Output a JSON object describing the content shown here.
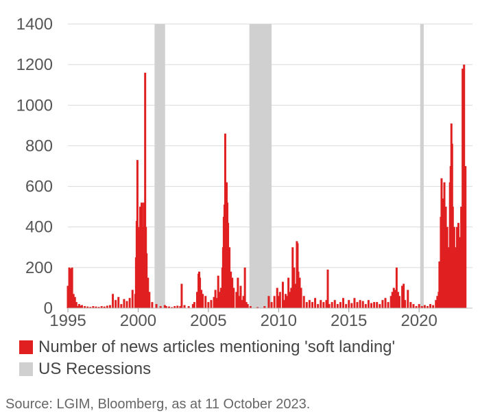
{
  "chart_data": {
    "type": "bar",
    "title": "",
    "xlabel": "",
    "ylabel": "",
    "xlim": [
      1995.0,
      2023.8
    ],
    "ylim": [
      0,
      1400
    ],
    "y_ticks": [
      0,
      200,
      400,
      600,
      800,
      1000,
      1200,
      1400
    ],
    "x_ticks": [
      1995,
      2000,
      2005,
      2010,
      2015,
      2020
    ],
    "grid": "horizontal",
    "legend_position": "bottom-left",
    "series": [
      {
        "name": "Number of news articles mentioning 'soft landing'",
        "color": "#e02020",
        "points": [
          [
            1995.0,
            110
          ],
          [
            1995.1,
            200
          ],
          [
            1995.2,
            195
          ],
          [
            1995.3,
            200
          ],
          [
            1995.4,
            70
          ],
          [
            1995.5,
            55
          ],
          [
            1995.6,
            30
          ],
          [
            1995.7,
            10
          ],
          [
            1995.8,
            20
          ],
          [
            1995.9,
            12
          ],
          [
            1996.0,
            15
          ],
          [
            1996.2,
            10
          ],
          [
            1996.4,
            8
          ],
          [
            1996.6,
            6
          ],
          [
            1996.8,
            10
          ],
          [
            1997.0,
            8
          ],
          [
            1997.2,
            6
          ],
          [
            1997.4,
            10
          ],
          [
            1997.6,
            8
          ],
          [
            1997.8,
            12
          ],
          [
            1998.0,
            15
          ],
          [
            1998.2,
            70
          ],
          [
            1998.4,
            40
          ],
          [
            1998.6,
            55
          ],
          [
            1998.8,
            20
          ],
          [
            1999.0,
            45
          ],
          [
            1999.2,
            35
          ],
          [
            1999.4,
            50
          ],
          [
            1999.6,
            90
          ],
          [
            1999.8,
            70
          ],
          [
            1999.85,
            250
          ],
          [
            1999.9,
            430
          ],
          [
            1999.95,
            730
          ],
          [
            2000.0,
            400
          ],
          [
            2000.1,
            380
          ],
          [
            2000.15,
            500
          ],
          [
            2000.2,
            410
          ],
          [
            2000.25,
            520
          ],
          [
            2000.3,
            400
          ],
          [
            2000.4,
            520
          ],
          [
            2000.45,
            350
          ],
          [
            2000.5,
            1160
          ],
          [
            2000.55,
            400
          ],
          [
            2000.6,
            270
          ],
          [
            2000.7,
            150
          ],
          [
            2000.8,
            80
          ],
          [
            2001.0,
            30
          ],
          [
            2001.3,
            20
          ],
          [
            2001.6,
            10
          ],
          [
            2001.9,
            15
          ],
          [
            2002.0,
            10
          ],
          [
            2002.2,
            8
          ],
          [
            2002.4,
            5
          ],
          [
            2002.6,
            10
          ],
          [
            2002.8,
            12
          ],
          [
            2003.0,
            10
          ],
          [
            2003.1,
            120
          ],
          [
            2003.3,
            15
          ],
          [
            2003.6,
            10
          ],
          [
            2003.9,
            20
          ],
          [
            2004.0,
            30
          ],
          [
            2004.2,
            80
          ],
          [
            2004.3,
            170
          ],
          [
            2004.35,
            180
          ],
          [
            2004.4,
            150
          ],
          [
            2004.5,
            90
          ],
          [
            2004.6,
            70
          ],
          [
            2004.8,
            60
          ],
          [
            2005.0,
            30
          ],
          [
            2005.2,
            40
          ],
          [
            2005.4,
            55
          ],
          [
            2005.5,
            90
          ],
          [
            2005.6,
            50
          ],
          [
            2005.7,
            160
          ],
          [
            2005.8,
            80
          ],
          [
            2005.9,
            100
          ],
          [
            2006.0,
            200
          ],
          [
            2006.05,
            300
          ],
          [
            2006.1,
            450
          ],
          [
            2006.15,
            510
          ],
          [
            2006.2,
            860
          ],
          [
            2006.25,
            600
          ],
          [
            2006.3,
            620
          ],
          [
            2006.35,
            520
          ],
          [
            2006.4,
            420
          ],
          [
            2006.5,
            300
          ],
          [
            2006.6,
            180
          ],
          [
            2006.7,
            150
          ],
          [
            2006.8,
            100
          ],
          [
            2007.0,
            80
          ],
          [
            2007.1,
            150
          ],
          [
            2007.2,
            60
          ],
          [
            2007.3,
            110
          ],
          [
            2007.4,
            40
          ],
          [
            2007.5,
            60
          ],
          [
            2007.6,
            200
          ],
          [
            2007.7,
            30
          ],
          [
            2007.8,
            20
          ],
          [
            2008.0,
            10
          ],
          [
            2008.5,
            5
          ],
          [
            2009.0,
            10
          ],
          [
            2009.3,
            60
          ],
          [
            2009.5,
            30
          ],
          [
            2009.7,
            60
          ],
          [
            2009.9,
            100
          ],
          [
            2010.0,
            60
          ],
          [
            2010.1,
            80
          ],
          [
            2010.3,
            130
          ],
          [
            2010.4,
            40
          ],
          [
            2010.5,
            70
          ],
          [
            2010.6,
            60
          ],
          [
            2010.7,
            150
          ],
          [
            2010.8,
            80
          ],
          [
            2010.9,
            100
          ],
          [
            2011.0,
            300
          ],
          [
            2011.1,
            200
          ],
          [
            2011.2,
            120
          ],
          [
            2011.3,
            330
          ],
          [
            2011.35,
            320
          ],
          [
            2011.4,
            180
          ],
          [
            2011.5,
            150
          ],
          [
            2011.6,
            100
          ],
          [
            2011.8,
            60
          ],
          [
            2012.0,
            30
          ],
          [
            2012.2,
            40
          ],
          [
            2012.4,
            30
          ],
          [
            2012.6,
            50
          ],
          [
            2012.8,
            20
          ],
          [
            2013.0,
            40
          ],
          [
            2013.2,
            30
          ],
          [
            2013.4,
            40
          ],
          [
            2013.5,
            190
          ],
          [
            2013.6,
            20
          ],
          [
            2013.8,
            30
          ],
          [
            2014.0,
            40
          ],
          [
            2014.2,
            20
          ],
          [
            2014.4,
            30
          ],
          [
            2014.6,
            50
          ],
          [
            2014.8,
            20
          ],
          [
            2015.0,
            40
          ],
          [
            2015.2,
            25
          ],
          [
            2015.4,
            50
          ],
          [
            2015.6,
            30
          ],
          [
            2015.8,
            40
          ],
          [
            2016.0,
            35
          ],
          [
            2016.2,
            20
          ],
          [
            2016.4,
            40
          ],
          [
            2016.6,
            25
          ],
          [
            2016.8,
            30
          ],
          [
            2017.0,
            30
          ],
          [
            2017.2,
            20
          ],
          [
            2017.4,
            40
          ],
          [
            2017.6,
            50
          ],
          [
            2017.8,
            30
          ],
          [
            2018.0,
            60
          ],
          [
            2018.1,
            80
          ],
          [
            2018.2,
            100
          ],
          [
            2018.3,
            90
          ],
          [
            2018.4,
            200
          ],
          [
            2018.5,
            80
          ],
          [
            2018.6,
            60
          ],
          [
            2018.8,
            110
          ],
          [
            2018.9,
            120
          ],
          [
            2019.0,
            40
          ],
          [
            2019.2,
            90
          ],
          [
            2019.4,
            30
          ],
          [
            2019.6,
            20
          ],
          [
            2019.8,
            10
          ],
          [
            2020.0,
            20
          ],
          [
            2020.2,
            10
          ],
          [
            2020.4,
            15
          ],
          [
            2020.6,
            10
          ],
          [
            2020.8,
            20
          ],
          [
            2021.0,
            15
          ],
          [
            2021.2,
            40
          ],
          [
            2021.3,
            60
          ],
          [
            2021.4,
            80
          ],
          [
            2021.45,
            230
          ],
          [
            2021.5,
            200
          ],
          [
            2021.55,
            450
          ],
          [
            2021.6,
            640
          ],
          [
            2021.65,
            460
          ],
          [
            2021.7,
            540
          ],
          [
            2021.8,
            620
          ],
          [
            2021.85,
            480
          ],
          [
            2021.9,
            500
          ],
          [
            2022.0,
            400
          ],
          [
            2022.1,
            300
          ],
          [
            2022.2,
            620
          ],
          [
            2022.25,
            700
          ],
          [
            2022.3,
            910
          ],
          [
            2022.35,
            810
          ],
          [
            2022.4,
            500
          ],
          [
            2022.5,
            400
          ],
          [
            2022.6,
            300
          ],
          [
            2022.7,
            400
          ],
          [
            2022.8,
            420
          ],
          [
            2022.9,
            350
          ],
          [
            2023.0,
            500
          ],
          [
            2023.1,
            1180
          ],
          [
            2023.2,
            1200
          ],
          [
            2023.3,
            700
          ]
        ]
      },
      {
        "name": "US Recessions",
        "color": "#d0d0d0",
        "periods": [
          [
            2001.17,
            2001.92
          ],
          [
            2007.92,
            2009.5
          ],
          [
            2020.08,
            2020.33
          ]
        ]
      }
    ]
  },
  "source": "Source: LGIM, Bloomberg,  as at 11 October 2023."
}
